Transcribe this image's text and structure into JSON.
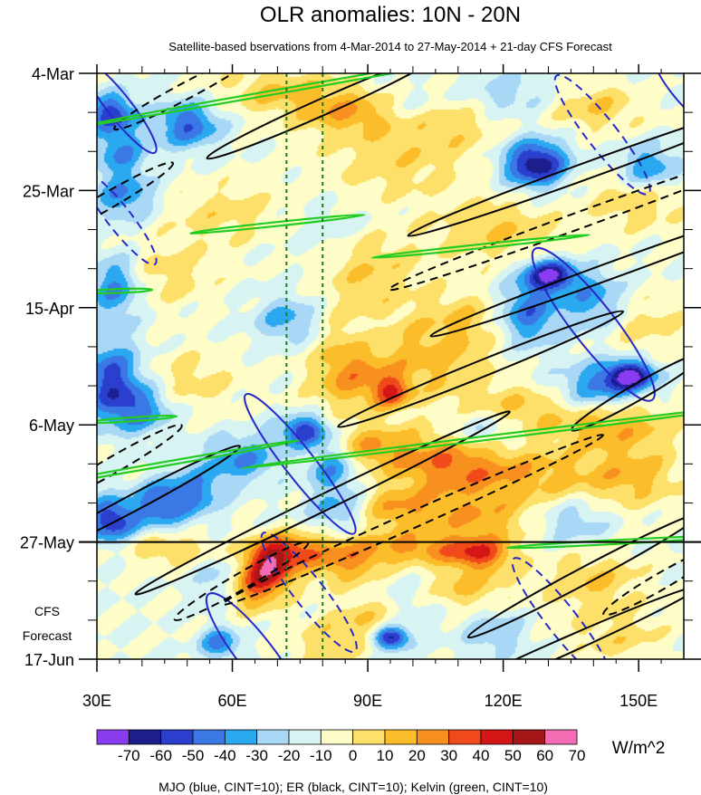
{
  "chart_data": {
    "type": "heatmap",
    "title": "OLR anomalies: 10N - 20N",
    "subtitle": "Satellite-based bservations from 4-Mar-2014 to 27-May-2014 + 21-day CFS Forecast",
    "x_range": [
      30,
      160
    ],
    "x_ticks": [
      {
        "label": "30E",
        "value": 30
      },
      {
        "label": "60E",
        "value": 60
      },
      {
        "label": "90E",
        "value": 90
      },
      {
        "label": "120E",
        "value": 120
      },
      {
        "label": "150E",
        "value": 150
      }
    ],
    "y_range_days": [
      0,
      105
    ],
    "y_ticks": [
      {
        "label": "4-Mar",
        "day": 0
      },
      {
        "label": "25-Mar",
        "day": 21
      },
      {
        "label": "15-Apr",
        "day": 42
      },
      {
        "label": "6-May",
        "day": 63
      },
      {
        "label": "27-May",
        "day": 84
      },
      {
        "label": "17-Jun",
        "day": 105
      }
    ],
    "forecast_start_day": 84,
    "forecast_label_lines": [
      "CFS",
      "Forecast"
    ],
    "vertical_reference_lines_lon": [
      72,
      80
    ],
    "colorbar": {
      "labels": [
        "-70",
        "-60",
        "-50",
        "-40",
        "-30",
        "-20",
        "-10",
        "0",
        "10",
        "20",
        "30",
        "40",
        "50",
        "60",
        "70"
      ],
      "colors": [
        "#8a3cf0",
        "#1d1d8c",
        "#2b3fcf",
        "#3a78e6",
        "#2aa8f0",
        "#a8d8f6",
        "#d8f4f2",
        "#fefdc8",
        "#fde06a",
        "#fbbd2a",
        "#f89020",
        "#f04a1a",
        "#d41616",
        "#a51818",
        "#f46cb4"
      ],
      "units": "W/m^2"
    },
    "anomaly_blobs": [
      {
        "lon": 33,
        "day": 7,
        "val": -45,
        "sx": 4,
        "sy": 2.5
      },
      {
        "lon": 50,
        "day": 9,
        "val": -40,
        "sx": 5,
        "sy": 3
      },
      {
        "lon": 35,
        "day": 14,
        "val": -30,
        "sx": 4,
        "sy": 3
      },
      {
        "lon": 36,
        "day": 22,
        "val": -30,
        "sx": 5,
        "sy": 3
      },
      {
        "lon": 34,
        "day": 38,
        "val": -35,
        "sx": 4,
        "sy": 4
      },
      {
        "lon": 33,
        "day": 55,
        "val": -45,
        "sx": 5,
        "sy": 5
      },
      {
        "lon": 40,
        "day": 60,
        "val": -30,
        "sx": 5,
        "sy": 3
      },
      {
        "lon": 33,
        "day": 80,
        "val": -50,
        "sx": 4,
        "sy": 3
      },
      {
        "lon": 44,
        "day": 77,
        "val": -40,
        "sx": 4,
        "sy": 3
      },
      {
        "lon": 52,
        "day": 75,
        "val": -30,
        "sx": 4,
        "sy": 3
      },
      {
        "lon": 62,
        "day": 69,
        "val": -30,
        "sx": 6,
        "sy": 3
      },
      {
        "lon": 76,
        "day": 64,
        "val": -50,
        "sx": 4,
        "sy": 2
      },
      {
        "lon": 82,
        "day": 70,
        "val": -35,
        "sx": 4,
        "sy": 3
      },
      {
        "lon": 84,
        "day": 78,
        "val": -30,
        "sx": 5,
        "sy": 3
      },
      {
        "lon": 72,
        "day": 44,
        "val": -25,
        "sx": 5,
        "sy": 3
      },
      {
        "lon": 91,
        "day": 47,
        "val": -20,
        "sx": 4,
        "sy": 3
      },
      {
        "lon": 100,
        "day": 6,
        "val": -20,
        "sx": 6,
        "sy": 3
      },
      {
        "lon": 120,
        "day": 4,
        "val": -20,
        "sx": 8,
        "sy": 3
      },
      {
        "lon": 127,
        "day": 16,
        "val": -60,
        "sx": 5,
        "sy": 3
      },
      {
        "lon": 152,
        "day": 17,
        "val": -35,
        "sx": 5,
        "sy": 3
      },
      {
        "lon": 130,
        "day": 36,
        "val": -60,
        "sx": 4,
        "sy": 2
      },
      {
        "lon": 125,
        "day": 43,
        "val": -40,
        "sx": 5,
        "sy": 4
      },
      {
        "lon": 140,
        "day": 41,
        "val": -30,
        "sx": 5,
        "sy": 4
      },
      {
        "lon": 148,
        "day": 54,
        "val": -60,
        "sx": 4,
        "sy": 2
      },
      {
        "lon": 140,
        "day": 56,
        "val": -30,
        "sx": 6,
        "sy": 3
      },
      {
        "lon": 115,
        "day": 63,
        "val": -25,
        "sx": 6,
        "sy": 3
      },
      {
        "lon": 135,
        "day": 80,
        "val": -20,
        "sx": 6,
        "sy": 3
      },
      {
        "lon": 95,
        "day": 101,
        "val": -60,
        "sx": 3,
        "sy": 1.5
      },
      {
        "lon": 58,
        "day": 91,
        "val": -30,
        "sx": 4,
        "sy": 3
      },
      {
        "lon": 57,
        "day": 102,
        "val": -35,
        "sx": 3,
        "sy": 2
      },
      {
        "lon": 100,
        "day": 93,
        "val": -15,
        "sx": 6,
        "sy": 4
      },
      {
        "lon": 118,
        "day": 100,
        "val": -20,
        "sx": 5,
        "sy": 3
      },
      {
        "lon": 82,
        "day": 28,
        "val": -10,
        "sx": 8,
        "sy": 4
      },
      {
        "lon": 70,
        "day": 3,
        "val": 20,
        "sx": 10,
        "sy": 3
      },
      {
        "lon": 85,
        "day": 7,
        "val": 25,
        "sx": 8,
        "sy": 3
      },
      {
        "lon": 105,
        "day": 8,
        "val": 25,
        "sx": 10,
        "sy": 4
      },
      {
        "lon": 140,
        "day": 6,
        "val": 20,
        "sx": 8,
        "sy": 3
      },
      {
        "lon": 95,
        "day": 17,
        "val": 15,
        "sx": 12,
        "sy": 4
      },
      {
        "lon": 58,
        "day": 25,
        "val": 15,
        "sx": 10,
        "sy": 4
      },
      {
        "lon": 118,
        "day": 28,
        "val": 20,
        "sx": 10,
        "sy": 4
      },
      {
        "lon": 150,
        "day": 22,
        "val": 20,
        "sx": 8,
        "sy": 4
      },
      {
        "lon": 45,
        "day": 36,
        "val": 15,
        "sx": 8,
        "sy": 4
      },
      {
        "lon": 90,
        "day": 34,
        "val": 20,
        "sx": 8,
        "sy": 5
      },
      {
        "lon": 90,
        "day": 48,
        "val": 25,
        "sx": 7,
        "sy": 5
      },
      {
        "lon": 95,
        "day": 57,
        "val": 40,
        "sx": 3,
        "sy": 2
      },
      {
        "lon": 85,
        "day": 55,
        "val": 25,
        "sx": 6,
        "sy": 4
      },
      {
        "lon": 105,
        "day": 52,
        "val": 20,
        "sx": 8,
        "sy": 4
      },
      {
        "lon": 112,
        "day": 44,
        "val": 20,
        "sx": 8,
        "sy": 4
      },
      {
        "lon": 150,
        "day": 45,
        "val": 15,
        "sx": 8,
        "sy": 4
      },
      {
        "lon": 50,
        "day": 55,
        "val": 15,
        "sx": 8,
        "sy": 4
      },
      {
        "lon": 120,
        "day": 60,
        "val": 25,
        "sx": 10,
        "sy": 3
      },
      {
        "lon": 145,
        "day": 63,
        "val": 25,
        "sx": 10,
        "sy": 3
      },
      {
        "lon": 90,
        "day": 67,
        "val": 30,
        "sx": 8,
        "sy": 3
      },
      {
        "lon": 108,
        "day": 70,
        "val": 35,
        "sx": 8,
        "sy": 4
      },
      {
        "lon": 125,
        "day": 72,
        "val": 25,
        "sx": 10,
        "sy": 4
      },
      {
        "lon": 148,
        "day": 72,
        "val": 25,
        "sx": 8,
        "sy": 4
      },
      {
        "lon": 95,
        "day": 78,
        "val": 30,
        "sx": 8,
        "sy": 3
      },
      {
        "lon": 115,
        "day": 80,
        "val": 25,
        "sx": 8,
        "sy": 3
      },
      {
        "lon": 45,
        "day": 85,
        "val": 20,
        "sx": 8,
        "sy": 2
      },
      {
        "lon": 68,
        "day": 88,
        "val": 55,
        "sx": 4,
        "sy": 3
      },
      {
        "lon": 63,
        "day": 92,
        "val": 40,
        "sx": 5,
        "sy": 3
      },
      {
        "lon": 73,
        "day": 85,
        "val": 30,
        "sx": 5,
        "sy": 2
      },
      {
        "lon": 85,
        "day": 87,
        "val": 35,
        "sx": 7,
        "sy": 3
      },
      {
        "lon": 102,
        "day": 85,
        "val": 30,
        "sx": 8,
        "sy": 2
      },
      {
        "lon": 115,
        "day": 86,
        "val": 40,
        "sx": 5,
        "sy": 2
      },
      {
        "lon": 110,
        "day": 92,
        "val": 25,
        "sx": 8,
        "sy": 3
      },
      {
        "lon": 140,
        "day": 91,
        "val": 20,
        "sx": 8,
        "sy": 4
      },
      {
        "lon": 90,
        "day": 98,
        "val": 20,
        "sx": 6,
        "sy": 3
      },
      {
        "lon": 80,
        "day": 102,
        "val": 15,
        "sx": 6,
        "sy": 3
      },
      {
        "lon": 145,
        "day": 101,
        "val": 15,
        "sx": 8,
        "sy": 3
      }
    ],
    "contours": [
      {
        "wave": "MJO",
        "sign": "pos",
        "lon": 35,
        "day": 6,
        "rlon": 4,
        "rday": 17,
        "angle": -38
      },
      {
        "wave": "MJO",
        "sign": "pos",
        "lon": 160,
        "day": 2,
        "rlon": 5,
        "rday": 14,
        "angle": -38
      },
      {
        "wave": "MJO",
        "sign": "pos",
        "lon": 140,
        "day": 45,
        "rlon": 7,
        "rday": 28,
        "angle": -38
      },
      {
        "wave": "MJO",
        "sign": "pos",
        "lon": 75,
        "day": 70,
        "rlon": 5,
        "rday": 26,
        "angle": -38
      },
      {
        "wave": "MJO",
        "sign": "pos",
        "lon": 65,
        "day": 104,
        "rlon": 6,
        "rday": 22,
        "angle": -38
      },
      {
        "wave": "MJO",
        "sign": "neg",
        "lon": 35,
        "day": 26,
        "rlon": 4,
        "rday": 17,
        "angle": -38
      },
      {
        "wave": "MJO",
        "sign": "neg",
        "lon": 142,
        "day": 11,
        "rlon": 5,
        "rday": 22,
        "angle": -38
      },
      {
        "wave": "MJO",
        "sign": "neg",
        "lon": 77,
        "day": 93,
        "rlon": 5,
        "rday": 22,
        "angle": -38
      },
      {
        "wave": "MJO",
        "sign": "neg",
        "lon": 133,
        "day": 98,
        "rlon": 5,
        "rday": 23,
        "angle": -38
      },
      {
        "wave": "ER",
        "sign": "pos",
        "lon": 80,
        "day": 6,
        "rlon": 3,
        "rday": 23,
        "angle": 66
      },
      {
        "wave": "ER",
        "sign": "pos",
        "lon": 140,
        "day": 17,
        "rlon": 3,
        "rday": 36,
        "angle": 70
      },
      {
        "wave": "ER",
        "sign": "pos",
        "lon": 145,
        "day": 35,
        "rlon": 3,
        "rday": 36,
        "angle": 70
      },
      {
        "wave": "ER",
        "sign": "pos",
        "lon": 115,
        "day": 53,
        "rlon": 3,
        "rday": 28,
        "angle": 68
      },
      {
        "wave": "ER",
        "sign": "pos",
        "lon": 150,
        "day": 57,
        "rlon": 2.5,
        "rday": 14,
        "angle": 60
      },
      {
        "wave": "ER",
        "sign": "pos",
        "lon": 38,
        "day": 77,
        "rlon": 3,
        "rday": 22,
        "angle": 62
      },
      {
        "wave": "ER",
        "sign": "pos",
        "lon": 80,
        "day": 77,
        "rlon": 3,
        "rday": 38,
        "angle": 64
      },
      {
        "wave": "ER",
        "sign": "pos",
        "lon": 138,
        "day": 90,
        "rlon": 2.5,
        "rday": 24,
        "angle": 62
      },
      {
        "wave": "ER",
        "sign": "pos",
        "lon": 130,
        "day": 104,
        "rlon": 3,
        "rday": 30,
        "angle": 66
      },
      {
        "wave": "ER",
        "sign": "neg",
        "lon": 50,
        "day": 3,
        "rlon": 2,
        "rday": 15,
        "angle": 62
      },
      {
        "wave": "ER",
        "sign": "neg",
        "lon": 138,
        "day": 26,
        "rlon": 3,
        "rday": 38,
        "angle": 70
      },
      {
        "wave": "ER",
        "sign": "neg",
        "lon": 32,
        "day": 23,
        "rlon": 2.5,
        "rday": 14,
        "angle": 60
      },
      {
        "wave": "ER",
        "sign": "neg",
        "lon": 34,
        "day": 70,
        "rlon": 2,
        "rday": 14,
        "angle": 60
      },
      {
        "wave": "ER",
        "sign": "neg",
        "lon": 100,
        "day": 80,
        "rlon": 3,
        "rday": 38,
        "angle": 66
      },
      {
        "wave": "ER",
        "sign": "neg",
        "lon": 62,
        "day": 91,
        "rlon": 2,
        "rday": 14,
        "angle": 60
      },
      {
        "wave": "ER",
        "sign": "neg",
        "lon": 155,
        "day": 91,
        "rlon": 2.5,
        "rday": 12,
        "angle": 60
      },
      {
        "wave": "Kelvin",
        "sign": "pos",
        "lon": 72,
        "day": 3,
        "rlon": 1,
        "rday": 38,
        "angle": 80
      },
      {
        "wave": "Kelvin",
        "sign": "pos",
        "lon": 70,
        "day": 27,
        "rlon": 0.6,
        "rday": 16,
        "angle": 84
      },
      {
        "wave": "Kelvin",
        "sign": "pos",
        "lon": 115,
        "day": 31,
        "rlon": 0.8,
        "rday": 20,
        "angle": 84
      },
      {
        "wave": "Kelvin",
        "sign": "pos",
        "lon": 45,
        "day": 70,
        "rlon": 0.8,
        "rday": 25,
        "angle": 80
      },
      {
        "wave": "Kelvin",
        "sign": "pos",
        "lon": 120,
        "day": 65,
        "rlon": 0.8,
        "rday": 48,
        "angle": 83
      },
      {
        "wave": "Kelvin",
        "sign": "pos",
        "lon": 145,
        "day": 84,
        "rlon": 0.6,
        "rday": 20,
        "angle": 87
      },
      {
        "wave": "Kelvin",
        "sign": "pos",
        "lon": 35,
        "day": 39,
        "rlon": 0.5,
        "rday": 6,
        "angle": 88
      },
      {
        "wave": "Kelvin",
        "sign": "pos",
        "lon": 38,
        "day": 62,
        "rlon": 0.5,
        "rday": 8,
        "angle": 86
      }
    ],
    "footer_note": "MJO (blue, CINT=10); ER (black, CINT=10); Kelvin (green, CINT=10)"
  }
}
